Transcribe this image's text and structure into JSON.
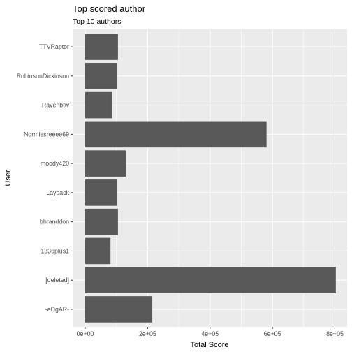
{
  "chart_data": {
    "type": "bar",
    "orientation": "horizontal",
    "title": "Top scored author",
    "subtitle": "Top 10 authors",
    "xlabel": "Total Score",
    "ylabel": "User",
    "xlim": [
      0,
      850000
    ],
    "xticks": [
      {
        "value": 0,
        "label": "0e+00"
      },
      {
        "value": 200000,
        "label": "2e+05"
      },
      {
        "value": 400000,
        "label": "4e+05"
      },
      {
        "value": 600000,
        "label": "6e+05"
      },
      {
        "value": 800000,
        "label": "8e+05"
      }
    ],
    "grid": true,
    "colors": {
      "bar": "#595959",
      "panel": "#ebebeb",
      "grid": "#ffffff"
    },
    "categories": [
      "TTVRaptor",
      "RobinsonDickinson",
      "Ravenbtw",
      "Normiesreeee69",
      "moody420",
      "Laypack",
      "bbranddon",
      "1336plus1",
      "[deleted]",
      "-eDgAR-"
    ],
    "values": [
      105000,
      103000,
      85000,
      581000,
      130000,
      103000,
      105000,
      81000,
      803000,
      215000
    ]
  }
}
